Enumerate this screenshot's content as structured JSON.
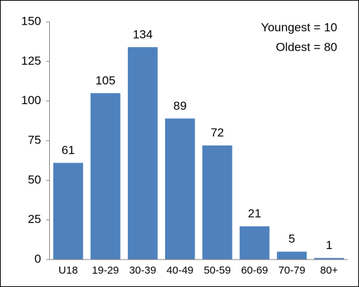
{
  "chart_data": {
    "type": "bar",
    "categories": [
      "U18",
      "19-29",
      "30-39",
      "40-49",
      "50-59",
      "60-69",
      "70-79",
      "80+"
    ],
    "values": [
      61,
      105,
      134,
      89,
      72,
      21,
      5,
      1
    ],
    "color": "#4f81bd",
    "ylim": [
      0,
      150
    ],
    "yticks": [
      0,
      25,
      50,
      75,
      100,
      125,
      150
    ],
    "grid": false,
    "annotations": [
      "Youngest = 10",
      "Oldest = 80"
    ]
  }
}
